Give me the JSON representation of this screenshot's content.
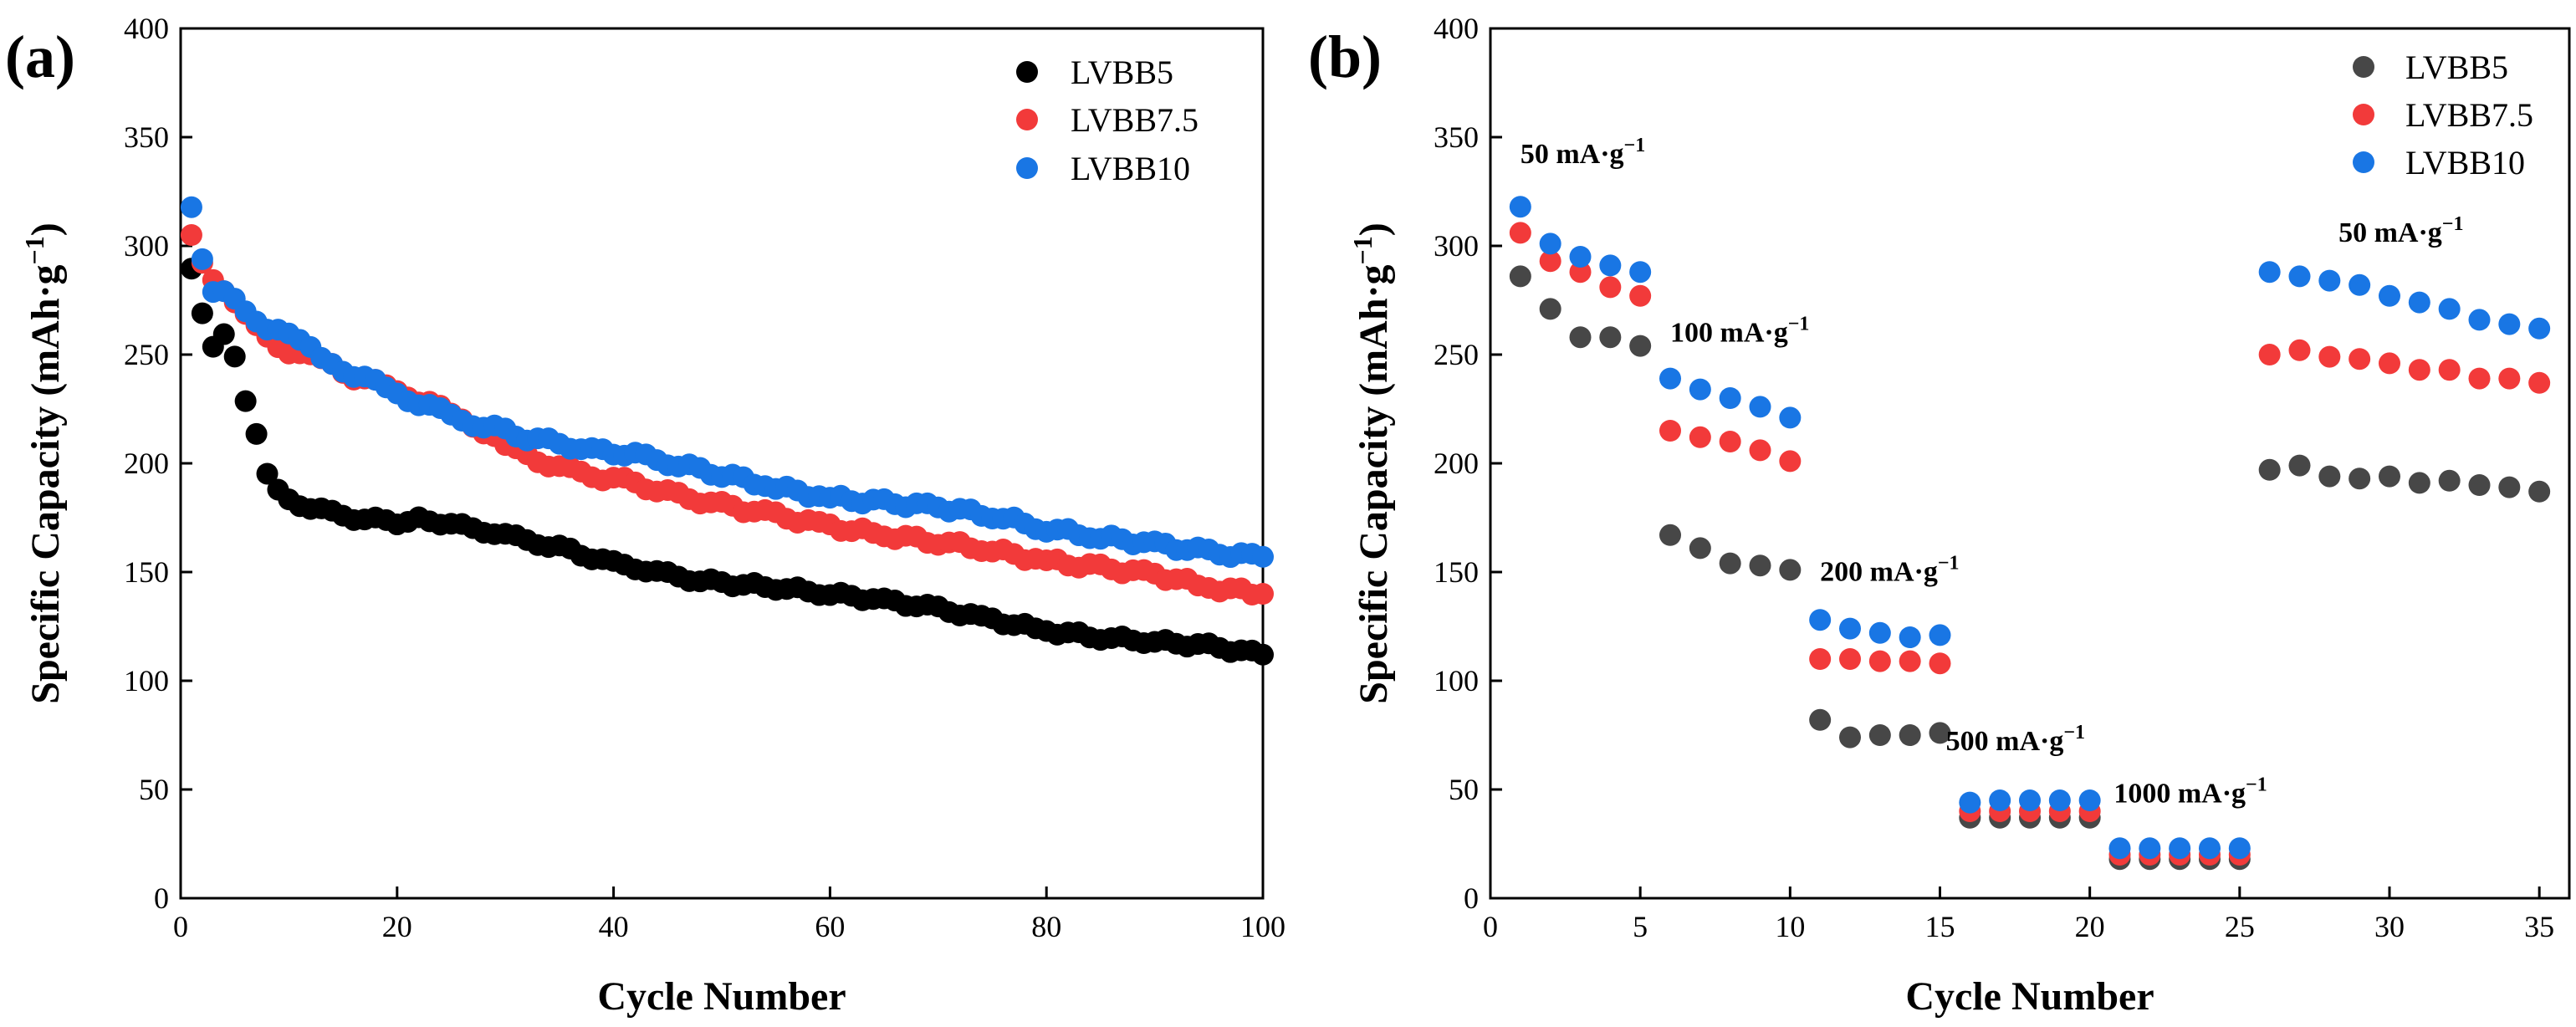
{
  "chart_data": [
    {
      "panel_label": "(a)",
      "type": "scatter",
      "title": "",
      "xlabel": "Cycle Number",
      "ylabel_main": "Specific Capacity (mAh·g",
      "ylabel_sup": "−1",
      "ylabel_close": ")",
      "xlim": [
        0,
        100
      ],
      "ylim": [
        0,
        400
      ],
      "xticks": [
        0,
        20,
        40,
        60,
        80,
        100
      ],
      "yticks": [
        0,
        50,
        100,
        150,
        200,
        250,
        300,
        350,
        400
      ],
      "legend_position": "top-right",
      "series": [
        {
          "name": "LVBB5",
          "color": "#000000",
          "anchors": [
            [
              1,
              289
            ],
            [
              2,
              268
            ],
            [
              3,
              254
            ],
            [
              4,
              259
            ],
            [
              5,
              248
            ],
            [
              6,
              229
            ],
            [
              7,
              213
            ],
            [
              8,
              195
            ],
            [
              9,
              187
            ],
            [
              10,
              183
            ],
            [
              12,
              180
            ],
            [
              14,
              177
            ],
            [
              16,
              175
            ],
            [
              18,
              174
            ],
            [
              20,
              173
            ],
            [
              22,
              174
            ],
            [
              24,
              173
            ],
            [
              26,
              171
            ],
            [
              28,
              169
            ],
            [
              30,
              167
            ],
            [
              32,
              165
            ],
            [
              34,
              162
            ],
            [
              36,
              160
            ],
            [
              38,
              157
            ],
            [
              40,
              154
            ],
            [
              42,
              152
            ],
            [
              44,
              150
            ],
            [
              46,
              148
            ],
            [
              48,
              146
            ],
            [
              50,
              145
            ],
            [
              55,
              143
            ],
            [
              60,
              140
            ],
            [
              65,
              137
            ],
            [
              70,
              133
            ],
            [
              75,
              128
            ],
            [
              80,
              123
            ],
            [
              85,
              120
            ],
            [
              90,
              118
            ],
            [
              95,
              116
            ],
            [
              100,
              112
            ]
          ],
          "jitter": 1.2
        },
        {
          "name": "LVBB7.5",
          "color": "#f23a3a",
          "anchors": [
            [
              1,
              306
            ],
            [
              2,
              292
            ],
            [
              3,
              283
            ],
            [
              4,
              278
            ],
            [
              5,
              273
            ],
            [
              6,
              268
            ],
            [
              7,
              263
            ],
            [
              8,
              258
            ],
            [
              9,
              254
            ],
            [
              10,
              252
            ],
            [
              12,
              249
            ],
            [
              14,
              246
            ],
            [
              16,
              240
            ],
            [
              18,
              237
            ],
            [
              20,
              234
            ],
            [
              22,
              229
            ],
            [
              24,
              225
            ],
            [
              26,
              221
            ],
            [
              28,
              215
            ],
            [
              30,
              208
            ],
            [
              32,
              203
            ],
            [
              34,
              200
            ],
            [
              36,
              197
            ],
            [
              38,
              194
            ],
            [
              40,
              193
            ],
            [
              42,
              191
            ],
            [
              44,
              188
            ],
            [
              46,
              185
            ],
            [
              48,
              183
            ],
            [
              50,
              181
            ],
            [
              55,
              176
            ],
            [
              60,
              171
            ],
            [
              65,
              167
            ],
            [
              70,
              164
            ],
            [
              75,
              160
            ],
            [
              80,
              155
            ],
            [
              85,
              152
            ],
            [
              90,
              149
            ],
            [
              95,
              143
            ],
            [
              100,
              140
            ]
          ],
          "jitter": 1.5
        },
        {
          "name": "LVBB10",
          "color": "#1976e4",
          "anchors": [
            [
              1,
              317
            ],
            [
              2,
              295
            ],
            [
              3,
              278
            ],
            [
              4,
              278
            ],
            [
              5,
              276
            ],
            [
              6,
              270
            ],
            [
              7,
              266
            ],
            [
              8,
              263
            ],
            [
              9,
              262
            ],
            [
              10,
              259
            ],
            [
              12,
              252
            ],
            [
              14,
              246
            ],
            [
              16,
              241
            ],
            [
              18,
              237
            ],
            [
              20,
              232
            ],
            [
              22,
              228
            ],
            [
              24,
              224
            ],
            [
              26,
              220
            ],
            [
              28,
              217
            ],
            [
              30,
              215
            ],
            [
              32,
              212
            ],
            [
              34,
              210
            ],
            [
              36,
              208
            ],
            [
              38,
              206
            ],
            [
              40,
              205
            ],
            [
              42,
              204
            ],
            [
              44,
              202
            ],
            [
              46,
              199
            ],
            [
              48,
              197
            ],
            [
              50,
              195
            ],
            [
              55,
              189
            ],
            [
              60,
              184
            ],
            [
              65,
              182
            ],
            [
              70,
              180
            ],
            [
              75,
              176
            ],
            [
              80,
              170
            ],
            [
              85,
              166
            ],
            [
              90,
              163
            ],
            [
              95,
              159
            ],
            [
              100,
              157
            ]
          ],
          "jitter": 1.5
        }
      ]
    },
    {
      "panel_label": "(b)",
      "type": "scatter",
      "title": "",
      "xlabel": "Cycle Number",
      "ylabel_main": "Specific Capacity (mAh·g",
      "ylabel_sup": "−1",
      "ylabel_close": ")",
      "xlim": [
        0,
        36
      ],
      "ylim": [
        0,
        400
      ],
      "xticks": [
        0,
        5,
        10,
        15,
        20,
        25,
        30,
        35
      ],
      "yticks": [
        0,
        50,
        100,
        150,
        200,
        250,
        300,
        350,
        400
      ],
      "legend_position": "top-right",
      "series": [
        {
          "name": "LVBB5",
          "color": "#474747",
          "x": [
            1,
            2,
            3,
            4,
            5,
            6,
            7,
            8,
            9,
            10,
            11,
            12,
            13,
            14,
            15,
            16,
            17,
            18,
            19,
            20,
            21,
            22,
            23,
            24,
            25,
            26,
            27,
            28,
            29,
            30,
            31,
            32,
            33,
            34,
            35
          ],
          "y": [
            286,
            271,
            258,
            258,
            254,
            167,
            161,
            154,
            153,
            151,
            82,
            74,
            75,
            75,
            76,
            37,
            37,
            37,
            37,
            37,
            18,
            18,
            18,
            18,
            18,
            197,
            199,
            194,
            193,
            194,
            191,
            192,
            190,
            189,
            187
          ]
        },
        {
          "name": "LVBB7.5",
          "color": "#f23a3a",
          "x": [
            1,
            2,
            3,
            4,
            5,
            6,
            7,
            8,
            9,
            10,
            11,
            12,
            13,
            14,
            15,
            16,
            17,
            18,
            19,
            20,
            21,
            22,
            23,
            24,
            25,
            26,
            27,
            28,
            29,
            30,
            31,
            32,
            33,
            34,
            35
          ],
          "y": [
            306,
            293,
            288,
            281,
            277,
            215,
            212,
            210,
            206,
            201,
            110,
            110,
            109,
            109,
            108,
            40,
            40,
            40,
            40,
            40,
            20,
            20,
            20,
            20,
            20,
            250,
            252,
            249,
            248,
            246,
            243,
            243,
            239,
            239,
            237
          ]
        },
        {
          "name": "LVBB10",
          "color": "#1976e4",
          "x": [
            1,
            2,
            3,
            4,
            5,
            6,
            7,
            8,
            9,
            10,
            11,
            12,
            13,
            14,
            15,
            16,
            17,
            18,
            19,
            20,
            21,
            22,
            23,
            24,
            25,
            26,
            27,
            28,
            29,
            30,
            31,
            32,
            33,
            34,
            35
          ],
          "y": [
            318,
            301,
            295,
            291,
            288,
            239,
            234,
            230,
            226,
            221,
            128,
            124,
            122,
            120,
            121,
            44,
            45,
            45,
            45,
            45,
            23,
            23,
            23,
            23,
            23,
            288,
            286,
            284,
            282,
            277,
            274,
            271,
            266,
            264,
            262
          ]
        }
      ],
      "annotations": [
        {
          "text": "50 mA·g",
          "sup": "−1",
          "x": 1,
          "y": 338
        },
        {
          "text": "100 mA·g",
          "sup": "−1",
          "x": 6,
          "y": 256
        },
        {
          "text": "200 mA·g",
          "sup": "−1",
          "x": 11,
          "y": 146
        },
        {
          "text": "500 mA·g",
          "sup": "−1",
          "x": 15.2,
          "y": 68
        },
        {
          "text": "1000 mA·g",
          "sup": "−1",
          "x": 20.8,
          "y": 44
        },
        {
          "text": "50 mA·g",
          "sup": "−1",
          "x": 28.3,
          "y": 302
        }
      ]
    }
  ]
}
